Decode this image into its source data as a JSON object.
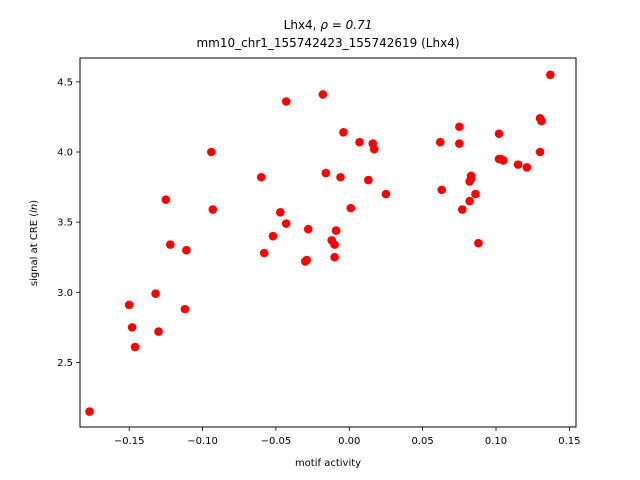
{
  "chart_data": {
    "type": "scatter",
    "title_line1": "Lhx4, ",
    "title_rho": "ρ = 0.71",
    "title_line2": "mm10_chr1_155742423_155742619 (Lhx4)",
    "xlabel": "motif activity",
    "ylabel_prefix": "signal at CRE (",
    "ylabel_italic": "ln",
    "ylabel_suffix": ")",
    "xlim": [
      -0.1835,
      0.1545
    ],
    "ylim": [
      2.04,
      4.67
    ],
    "xticks": [
      -0.15,
      -0.1,
      -0.05,
      0.0,
      0.05,
      0.1,
      0.15
    ],
    "xtick_labels": [
      "−0.15",
      "−0.10",
      "−0.05",
      "0.00",
      "0.05",
      "0.10",
      "0.15"
    ],
    "yticks": [
      2.5,
      3.0,
      3.5,
      4.0,
      4.5
    ],
    "ytick_labels": [
      "2.5",
      "3.0",
      "3.5",
      "4.0",
      "4.5"
    ],
    "point_color": "#ff0000",
    "grid": false,
    "x": [
      -0.177,
      -0.15,
      -0.148,
      -0.146,
      -0.132,
      -0.13,
      -0.125,
      -0.122,
      -0.112,
      -0.111,
      -0.094,
      -0.093,
      -0.06,
      -0.058,
      -0.052,
      -0.047,
      -0.043,
      -0.043,
      -0.03,
      -0.029,
      -0.028,
      -0.018,
      -0.016,
      -0.012,
      -0.01,
      -0.01,
      -0.009,
      -0.006,
      -0.004,
      0.001,
      0.007,
      0.013,
      0.016,
      0.017,
      0.025,
      0.062,
      0.063,
      0.075,
      0.075,
      0.077,
      0.082,
      0.082,
      0.083,
      0.083,
      0.086,
      0.088,
      0.102,
      0.102,
      0.103,
      0.105,
      0.115,
      0.121,
      0.13,
      0.13,
      0.131,
      0.137
    ],
    "y": [
      2.15,
      2.91,
      2.75,
      2.61,
      2.99,
      2.72,
      3.66,
      3.34,
      2.88,
      3.3,
      4.0,
      3.59,
      3.82,
      3.28,
      3.4,
      3.57,
      4.36,
      3.49,
      3.22,
      3.23,
      3.45,
      4.41,
      3.85,
      3.37,
      3.25,
      3.34,
      3.44,
      3.82,
      4.14,
      3.6,
      4.07,
      3.8,
      4.06,
      4.02,
      3.7,
      4.07,
      3.73,
      4.18,
      4.06,
      3.59,
      3.79,
      3.65,
      3.83,
      3.81,
      3.7,
      3.35,
      4.13,
      3.95,
      3.95,
      3.94,
      3.91,
      3.89,
      4.24,
      4.0,
      4.22,
      4.55
    ]
  }
}
